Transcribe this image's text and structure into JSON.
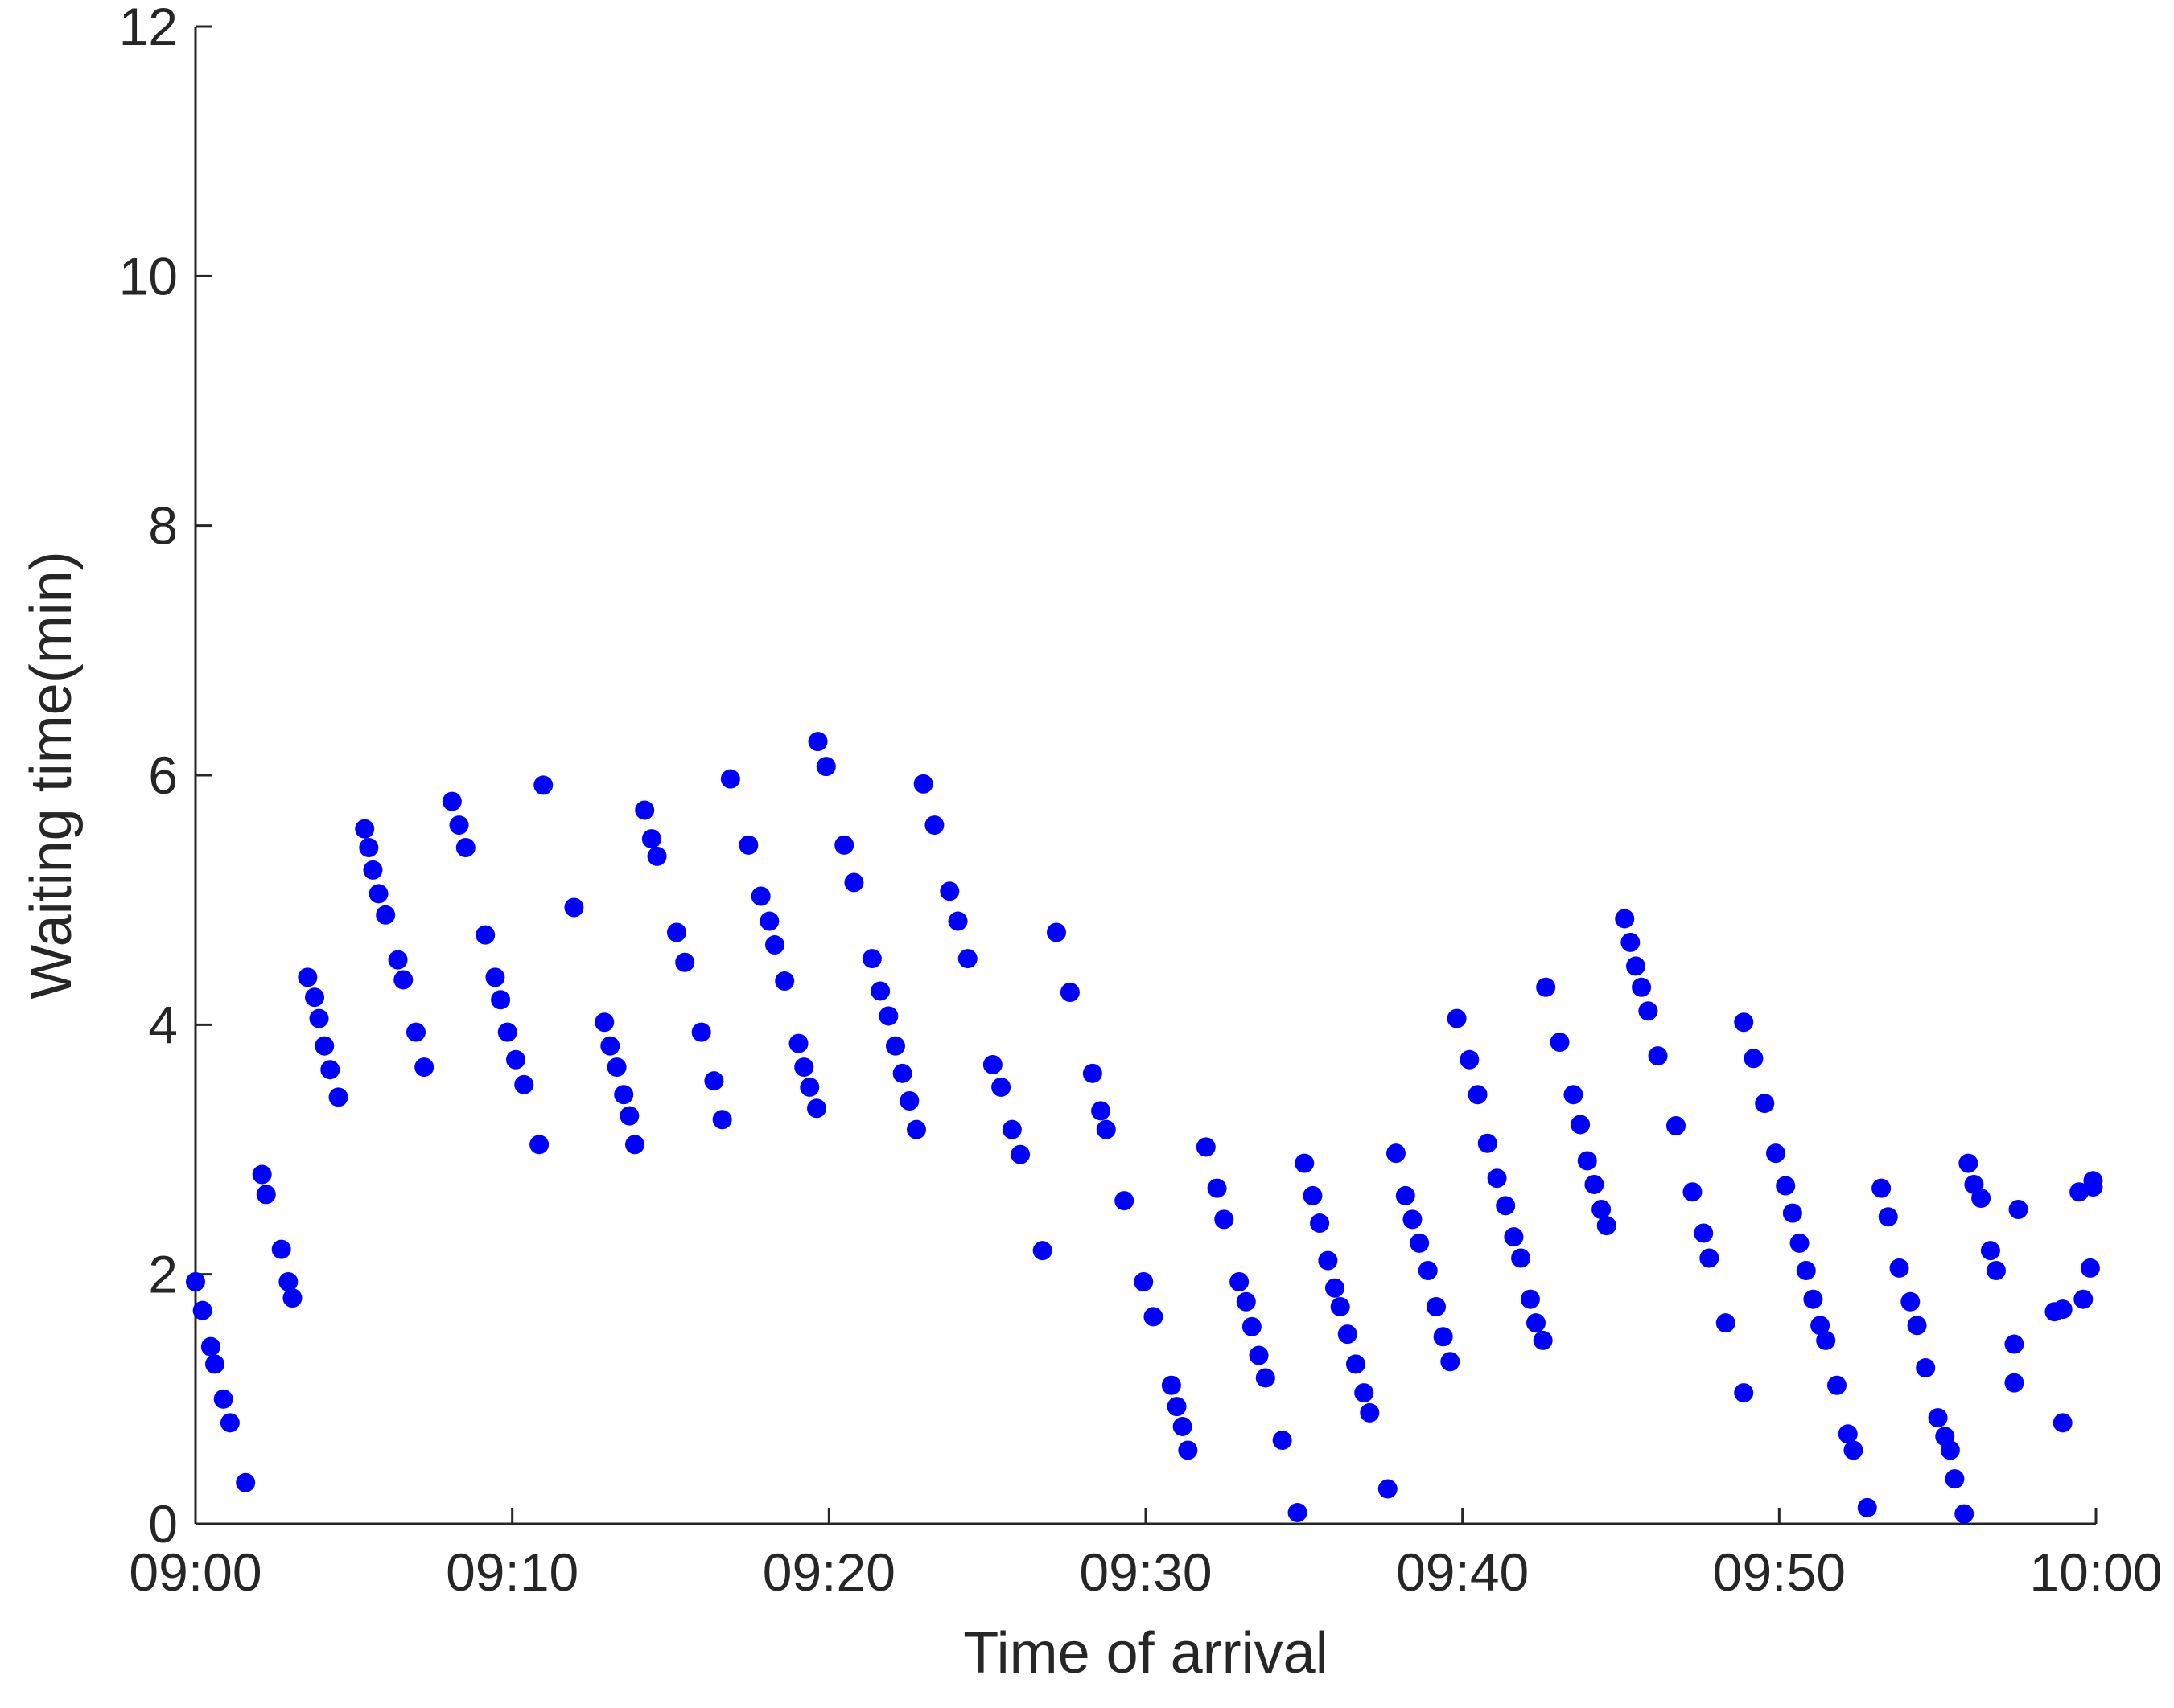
{
  "chart_data": {
    "type": "scatter",
    "xlabel": "Time of arrival",
    "ylabel": "Waiting time(min)",
    "color": "#0000ff",
    "xlim": [
      0,
      60
    ],
    "ylim": [
      0,
      12
    ],
    "xticks": [
      {
        "value": 0,
        "label": "09:00"
      },
      {
        "value": 10,
        "label": "09:10"
      },
      {
        "value": 20,
        "label": "09:20"
      },
      {
        "value": 30,
        "label": "09:30"
      },
      {
        "value": 40,
        "label": "09:40"
      },
      {
        "value": 50,
        "label": "09:50"
      },
      {
        "value": 60,
        "label": "10:00"
      }
    ],
    "yticks": [
      0,
      2,
      4,
      6,
      8,
      10,
      12
    ],
    "x": [
      0,
      0.22,
      0.48,
      0.61,
      0.88,
      1.09,
      1.58,
      2.1,
      2.23,
      2.71,
      2.93,
      3.06,
      3.54,
      3.76,
      3.9,
      4.07,
      4.25,
      4.51,
      5.34,
      5.47,
      5.6,
      5.78,
      6.0,
      6.39,
      6.56,
      6.96,
      7.22,
      8.1,
      8.32,
      8.53,
      9.15,
      9.46,
      9.63,
      9.85,
      10.11,
      10.37,
      10.85,
      10.98,
      11.95,
      12.91,
      13.09,
      13.3,
      13.52,
      13.7,
      13.87,
      14.18,
      14.4,
      14.57,
      15.19,
      15.45,
      15.97,
      16.37,
      16.63,
      16.89,
      17.46,
      17.85,
      18.12,
      18.29,
      18.6,
      19.04,
      19.21,
      19.39,
      19.61,
      19.65,
      19.91,
      20.48,
      20.79,
      21.36,
      21.62,
      21.88,
      22.1,
      22.32,
      22.54,
      22.76,
      22.98,
      23.33,
      23.81,
      24.07,
      24.38,
      25.17,
      25.43,
      25.78,
      26.04,
      26.74,
      27.18,
      27.61,
      28.32,
      28.58,
      28.75,
      29.32,
      29.93,
      30.24,
      30.81,
      30.98,
      31.16,
      31.33,
      31.9,
      32.25,
      32.47,
      32.95,
      33.17,
      33.35,
      33.57,
      33.78,
      34.31,
      34.79,
      35.01,
      35.27,
      35.49,
      35.75,
      35.97,
      36.14,
      36.37,
      36.63,
      36.89,
      37.07,
      37.64,
      37.9,
      38.2,
      38.42,
      38.64,
      38.91,
      39.17,
      39.39,
      39.61,
      39.82,
      40.22,
      40.48,
      40.79,
      41.09,
      41.36,
      41.62,
      41.84,
      42.14,
      42.32,
      42.54,
      42.63,
      43.07,
      43.5,
      43.72,
      43.94,
      44.16,
      44.38,
      44.55,
      45.12,
      45.3,
      45.47,
      45.65,
      45.86,
      46.17,
      46.74,
      47.26,
      47.61,
      47.79,
      48.31,
      48.88,
      48.88,
      49.19,
      49.54,
      49.89,
      50.2,
      50.42,
      50.64,
      50.85,
      51.07,
      51.29,
      51.47,
      51.82,
      52.17,
      52.34,
      52.78,
      53.22,
      53.44,
      53.79,
      54.14,
      54.35,
      54.62,
      55.01,
      55.23,
      55.4,
      55.54,
      55.84,
      55.97,
      56.15,
      56.37,
      56.67,
      56.85,
      57.42,
      57.42,
      57.55,
      58.69,
      58.95,
      58.95,
      59.47,
      59.6,
      59.82,
      59.91,
      59.91
    ],
    "values": [
      1.94,
      1.71,
      1.42,
      1.28,
      1.0,
      0.81,
      0.33,
      2.8,
      2.64,
      2.2,
      1.94,
      1.81,
      4.38,
      4.22,
      4.05,
      3.83,
      3.64,
      3.42,
      5.57,
      5.42,
      5.24,
      5.05,
      4.88,
      4.52,
      4.36,
      3.94,
      3.66,
      5.79,
      5.6,
      5.42,
      4.72,
      4.38,
      4.2,
      3.94,
      3.72,
      3.52,
      3.04,
      5.92,
      4.94,
      4.02,
      3.83,
      3.66,
      3.44,
      3.27,
      3.04,
      5.72,
      5.49,
      5.35,
      4.74,
      4.5,
      3.94,
      3.55,
      3.24,
      5.97,
      5.44,
      5.03,
      4.83,
      4.64,
      4.35,
      3.85,
      3.66,
      3.5,
      3.33,
      6.27,
      6.07,
      5.44,
      5.14,
      4.53,
      4.27,
      4.07,
      3.83,
      3.61,
      3.39,
      3.16,
      5.93,
      5.6,
      5.07,
      4.83,
      4.53,
      3.68,
      3.5,
      3.16,
      2.96,
      2.19,
      4.74,
      4.26,
      3.61,
      3.31,
      3.16,
      2.59,
      1.94,
      1.66,
      1.11,
      0.94,
      0.78,
      0.59,
      3.02,
      2.69,
      2.44,
      1.94,
      1.78,
      1.58,
      1.35,
      1.17,
      0.67,
      0.09,
      2.89,
      2.63,
      2.41,
      2.11,
      1.89,
      1.74,
      1.52,
      1.28,
      1.05,
      0.89,
      0.28,
      2.97,
      2.63,
      2.44,
      2.25,
      2.03,
      1.74,
      1.5,
      1.3,
      4.05,
      3.72,
      3.44,
      3.05,
      2.77,
      2.55,
      2.3,
      2.13,
      1.8,
      1.61,
      1.47,
      4.3,
      3.86,
      3.44,
      3.2,
      2.91,
      2.72,
      2.52,
      2.39,
      4.85,
      4.66,
      4.47,
      4.3,
      4.11,
      3.75,
      3.19,
      2.66,
      2.33,
      2.13,
      1.61,
      1.05,
      4.02,
      3.73,
      3.37,
      2.97,
      2.71,
      2.49,
      2.25,
      2.03,
      1.8,
      1.59,
      1.47,
      1.11,
      0.72,
      0.59,
      0.13,
      2.69,
      2.46,
      2.05,
      1.78,
      1.59,
      1.25,
      0.85,
      0.7,
      0.59,
      0.36,
      0.08,
      2.89,
      2.72,
      2.61,
      2.19,
      2.03,
      1.44,
      1.13,
      2.52,
      1.7,
      1.72,
      0.81,
      2.66,
      1.8,
      2.05,
      2.7,
      2.75
    ]
  }
}
